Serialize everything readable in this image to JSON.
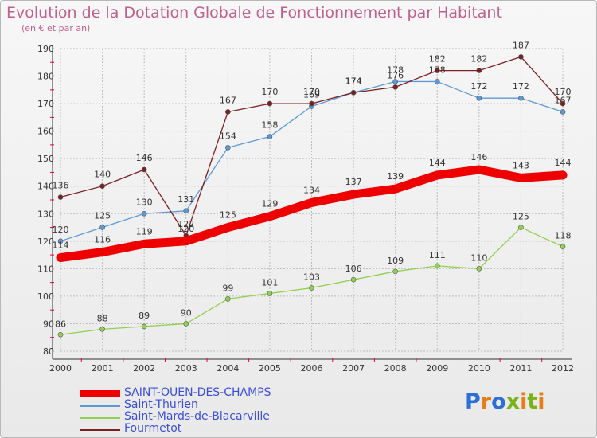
{
  "header": {
    "title": "Evolution de la Dotation Globale de Fonctionnement par Habitant",
    "subtitle": "(en € et par an)"
  },
  "logo": {
    "text": "Proxiti"
  },
  "colors": {
    "title": "#c0608e",
    "legend_text": "#3b4fd8",
    "grid": "#bbbbbb",
    "axis_marks": "#e0003c"
  },
  "chart_data": {
    "type": "line",
    "title": "Evolution de la Dotation Globale de Fonctionnement par Habitant",
    "subtitle": "(en € et par an)",
    "xlabel": "",
    "ylabel": "",
    "x": [
      "2000",
      "2001",
      "2002",
      "2003",
      "2004",
      "2005",
      "2006",
      "2007",
      "2008",
      "2009",
      "2010",
      "2011",
      "2012"
    ],
    "ylim": [
      80,
      190
    ],
    "yticks": [
      80,
      90,
      100,
      110,
      120,
      130,
      140,
      150,
      160,
      170,
      180,
      190
    ],
    "grid": true,
    "legend_position": "bottom-left",
    "series": [
      {
        "name": "SAINT-OUEN-DES-CHAMPS",
        "color": "#ee0000",
        "values": [
          114,
          116,
          119,
          120,
          125,
          129,
          134,
          137,
          139,
          144,
          146,
          143,
          144
        ]
      },
      {
        "name": "Saint-Thurien",
        "color": "#5b9bd5",
        "values": [
          120,
          125,
          130,
          131,
          154,
          158,
          169,
          174,
          178,
          178,
          172,
          172,
          167
        ]
      },
      {
        "name": "Saint-Mards-de-Blacarville",
        "color": "#92d050",
        "values": [
          86,
          88,
          89,
          90,
          99,
          101,
          103,
          106,
          109,
          111,
          110,
          125,
          118
        ]
      },
      {
        "name": "Fourmetot",
        "color": "#7b2020",
        "values": [
          136,
          140,
          146,
          122,
          167,
          170,
          170,
          174,
          176,
          182,
          182,
          187,
          170
        ]
      }
    ]
  }
}
